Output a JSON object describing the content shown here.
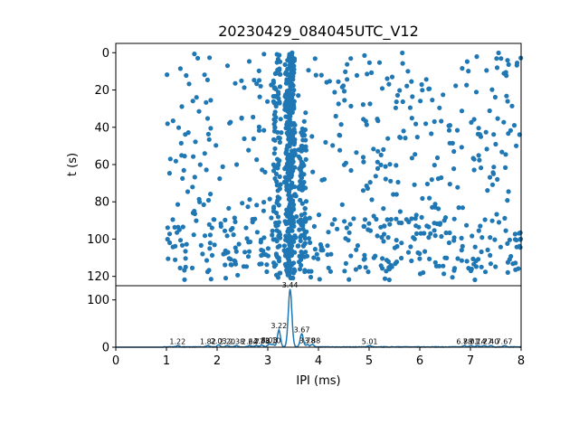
{
  "chart_data": [
    {
      "type": "scatter",
      "title": "20230429_084045UTC_V12",
      "ylabel": "t (s)",
      "xlabel": "",
      "xlim": [
        0,
        8
      ],
      "ylim": [
        125,
        -5
      ],
      "y_inverted": true,
      "yticks": [
        0,
        20,
        40,
        60,
        80,
        100,
        120
      ],
      "xticks_shown": false,
      "marker_color": "#1f77b4",
      "raster_t_range": [
        0,
        122
      ],
      "raster_x_range": [
        1.0,
        8.0
      ],
      "dense_band_x": 3.44,
      "approx_point_count": 1100
    },
    {
      "type": "line",
      "xlabel": "IPI (ms)",
      "ylabel": "",
      "xlim": [
        0,
        8
      ],
      "ylim": [
        0,
        130
      ],
      "xticks": [
        0,
        1,
        2,
        3,
        4,
        5,
        6,
        7,
        8
      ],
      "yticks": [
        0,
        100
      ],
      "line_color": "#1f77b4",
      "peaks": [
        {
          "x": 1.22,
          "y": 3,
          "label": "1.22"
        },
        {
          "x": 1.82,
          "y": 3,
          "label": "1.82"
        },
        {
          "x": 2.03,
          "y": 4,
          "label": "2.03"
        },
        {
          "x": 2.2,
          "y": 3,
          "label": "2.20"
        },
        {
          "x": 2.38,
          "y": 3,
          "label": "2.38"
        },
        {
          "x": 2.64,
          "y": 3,
          "label": "2.64"
        },
        {
          "x": 2.77,
          "y": 3,
          "label": "2.77"
        },
        {
          "x": 2.88,
          "y": 4,
          "label": "2.88"
        },
        {
          "x": 3.03,
          "y": 6,
          "label": "3.03"
        },
        {
          "x": 3.1,
          "y": 5,
          "label": "3.10"
        },
        {
          "x": 3.22,
          "y": 36,
          "label": "3.22"
        },
        {
          "x": 3.44,
          "y": 122,
          "label": "3.44"
        },
        {
          "x": 3.67,
          "y": 28,
          "label": "3.67"
        },
        {
          "x": 3.78,
          "y": 5,
          "label": "3.78"
        },
        {
          "x": 3.88,
          "y": 5,
          "label": "3.88"
        },
        {
          "x": 5.01,
          "y": 3,
          "label": "5.01"
        },
        {
          "x": 6.88,
          "y": 3,
          "label": "6.88"
        },
        {
          "x": 7.01,
          "y": 3,
          "label": "7.01"
        },
        {
          "x": 7.14,
          "y": 3,
          "label": "7.14"
        },
        {
          "x": 7.27,
          "y": 3,
          "label": "7.27"
        },
        {
          "x": 7.4,
          "y": 3,
          "label": "7.40"
        },
        {
          "x": 7.67,
          "y": 3,
          "label": "7.67"
        }
      ]
    }
  ]
}
